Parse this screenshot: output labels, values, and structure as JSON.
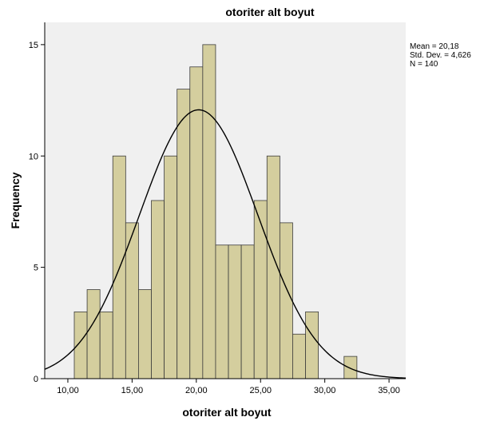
{
  "chart_data": {
    "type": "bar",
    "subtype": "histogram",
    "title": "otoriter alt boyut",
    "xlabel": "otoriter alt boyut",
    "ylabel": "Frequency",
    "bin_width": 1,
    "bins": [
      {
        "x0": 10.5,
        "x1": 11.5,
        "value": 3
      },
      {
        "x0": 11.5,
        "x1": 12.5,
        "value": 4
      },
      {
        "x0": 12.5,
        "x1": 13.5,
        "value": 3
      },
      {
        "x0": 13.5,
        "x1": 14.5,
        "value": 10
      },
      {
        "x0": 14.5,
        "x1": 15.5,
        "value": 7
      },
      {
        "x0": 15.5,
        "x1": 16.5,
        "value": 4
      },
      {
        "x0": 16.5,
        "x1": 17.5,
        "value": 8
      },
      {
        "x0": 17.5,
        "x1": 18.5,
        "value": 10
      },
      {
        "x0": 18.5,
        "x1": 19.5,
        "value": 13
      },
      {
        "x0": 19.5,
        "x1": 20.5,
        "value": 14
      },
      {
        "x0": 20.5,
        "x1": 21.5,
        "value": 15
      },
      {
        "x0": 21.5,
        "x1": 22.5,
        "value": 6
      },
      {
        "x0": 22.5,
        "x1": 23.5,
        "value": 6
      },
      {
        "x0": 23.5,
        "x1": 24.5,
        "value": 6
      },
      {
        "x0": 24.5,
        "x1": 25.5,
        "value": 8
      },
      {
        "x0": 25.5,
        "x1": 26.5,
        "value": 10
      },
      {
        "x0": 26.5,
        "x1": 27.5,
        "value": 7
      },
      {
        "x0": 27.5,
        "x1": 28.5,
        "value": 2
      },
      {
        "x0": 28.5,
        "x1": 29.5,
        "value": 3
      },
      {
        "x0": 31.5,
        "x1": 32.5,
        "value": 1
      }
    ],
    "x_ticks": [
      {
        "value": 10,
        "label": "10,00"
      },
      {
        "value": 15,
        "label": "15,00"
      },
      {
        "value": 20,
        "label": "20,00"
      },
      {
        "value": 25,
        "label": "25,00"
      },
      {
        "value": 30,
        "label": "30,00"
      },
      {
        "value": 35,
        "label": "35,00"
      }
    ],
    "y_ticks": [
      {
        "value": 0,
        "label": "0"
      },
      {
        "value": 5,
        "label": "5"
      },
      {
        "value": 10,
        "label": "10"
      },
      {
        "value": 15,
        "label": "15"
      }
    ],
    "xlim": [
      8.2,
      36.3
    ],
    "ylim": [
      0,
      16.0
    ],
    "normal_curve": {
      "mean": 20.18,
      "sd": 4.626,
      "n": 140
    },
    "stats_text": [
      "Mean = 20,18",
      "Std. Dev. = 4,626",
      "N = 140"
    ],
    "grid": false,
    "colors": {
      "bar_fill": "#d4ce9e",
      "bar_stroke": "#3c3c3c",
      "plot_background": "#f0f0f0",
      "curve": "#000000"
    }
  }
}
